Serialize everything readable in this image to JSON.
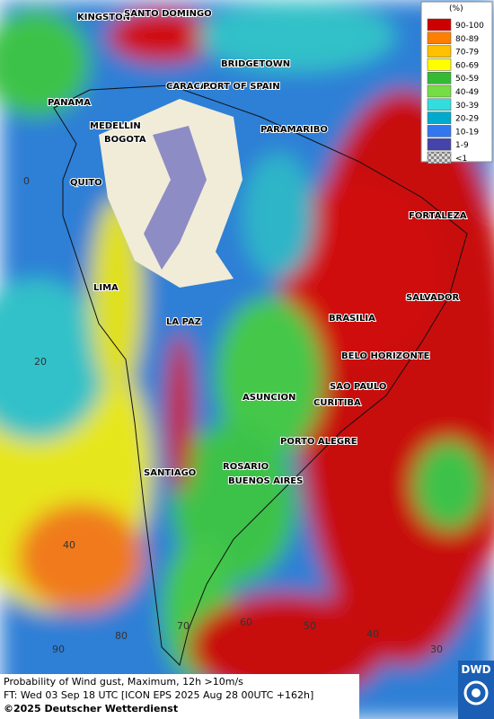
{
  "cities": [
    "KINGSTON",
    "SANTO DOMINGO",
    "BRIDGETOWN",
    "CARACAS",
    "PORT OF SPAIN",
    "PANAMA",
    "MEDELLIN",
    "BOGOTA",
    "PARAMARIBO",
    "QUITO",
    "FORTALEZA",
    "LIMA",
    "SALVADOR",
    "BRASILIA",
    "LA PAZ",
    "BELO HORIZONTE",
    "ASUNCION",
    "SAO PAULO",
    "CURITIBA",
    "PORTO ALEGRE",
    "SANTIAGO",
    "ROSARIO",
    "BUENOS AIRES"
  ],
  "latitude_labels": [
    0,
    20,
    40
  ],
  "longitude_labels": [
    90,
    80,
    70,
    60,
    50,
    40,
    30
  ],
  "legend": {
    "title": "(%)",
    "items": [
      {
        "label": "90-100",
        "color": "#cc0000"
      },
      {
        "label": "80-89",
        "color": "#ff7f00"
      },
      {
        "label": "70-79",
        "color": "#ffc000"
      },
      {
        "label": "60-69",
        "color": "#ffff00"
      },
      {
        "label": "50-59",
        "color": "#33bb33"
      },
      {
        "label": "40-49",
        "color": "#77dd44"
      },
      {
        "label": "30-39",
        "color": "#33dddd"
      },
      {
        "label": "20-29",
        "color": "#00aacc"
      },
      {
        "label": "10-19",
        "color": "#3377ee"
      },
      {
        "label": "1-9",
        "color": "#4444aa"
      },
      {
        "label": "<1",
        "color": "checker"
      }
    ]
  },
  "footer": {
    "line1": "Probability of Wind gust, Maximum, 12h >10m/s",
    "line2": "FT: Wed 03 Sep 18 UTC [ICON EPS 2025 Aug 28 00UTC +162h]",
    "copyright": "©2025 Deutscher Wetterdienst"
  },
  "logo": "DWD"
}
